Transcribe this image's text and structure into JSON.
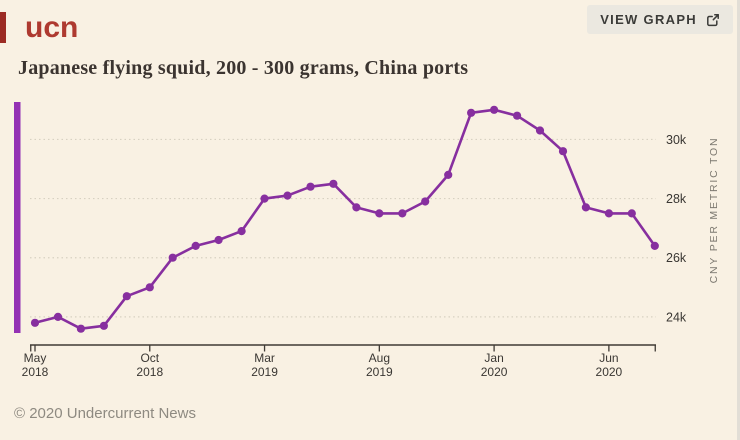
{
  "header": {
    "logo_text": "ucn",
    "view_graph_label": "VIEW GRAPH"
  },
  "footer": {
    "copyright": "© 2020 Undercurrent News"
  },
  "colors": {
    "background": "#f9f1e3",
    "line_purple": "#872f9f",
    "side_bar_purple": "#9431b4",
    "logo_red": "#ae3a30",
    "logo_bar_red": "#9c2b24",
    "grid_dotted": "#d8d1c2",
    "axis_dark": "#403b35",
    "tick_text": "#3a3733",
    "axis_title_muted": "#7d7970",
    "button_bg": "#ebe8e0"
  },
  "chart_data": {
    "type": "line",
    "title": "Japanese flying squid, 200 - 300 grams, China ports",
    "ylabel": "CNY PER METRIC TON",
    "xlabel": "",
    "values_unit": "thousand CNY per metric ton",
    "legend": "none",
    "grid": "dotted-horizontal",
    "ylim": [
      23.05,
      31.4
    ],
    "x": [
      "May 2018",
      "Jun 2018",
      "Jul 2018",
      "Aug 2018",
      "Sep 2018",
      "Oct 2018",
      "Nov 2018",
      "Dec 2018",
      "Jan 2019",
      "Feb 2019",
      "Mar 2019",
      "Apr 2019",
      "May 2019",
      "Jun 2019",
      "Jul 2019",
      "Aug 2019",
      "Sep 2019",
      "Oct 2019",
      "Nov 2019",
      "Dec 2019",
      "Jan 2020",
      "Feb 2020",
      "Mar 2020",
      "Apr 2020",
      "May 2020",
      "Jun 2020",
      "Jul 2020",
      "Aug 2020"
    ],
    "values": [
      23.8,
      24.0,
      23.6,
      23.7,
      24.7,
      25.0,
      26.0,
      26.4,
      26.6,
      26.9,
      28.0,
      28.1,
      28.4,
      28.5,
      27.7,
      27.5,
      27.5,
      27.9,
      28.8,
      30.9,
      31.0,
      30.8,
      30.3,
      29.6,
      27.7,
      27.5,
      27.5,
      26.4
    ],
    "y_ticks": [
      {
        "label": "24k",
        "value": 24
      },
      {
        "label": "26k",
        "value": 26
      },
      {
        "label": "28k",
        "value": 28
      },
      {
        "label": "30k",
        "value": 30
      }
    ],
    "x_ticks": [
      {
        "month": "May",
        "year": "2018",
        "index": 0
      },
      {
        "month": "Oct",
        "year": "2018",
        "index": 5
      },
      {
        "month": "Mar",
        "year": "2019",
        "index": 10
      },
      {
        "month": "Aug",
        "year": "2019",
        "index": 15
      },
      {
        "month": "Jan",
        "year": "2020",
        "index": 20
      },
      {
        "month": "Jun",
        "year": "2020",
        "index": 25
      }
    ]
  }
}
